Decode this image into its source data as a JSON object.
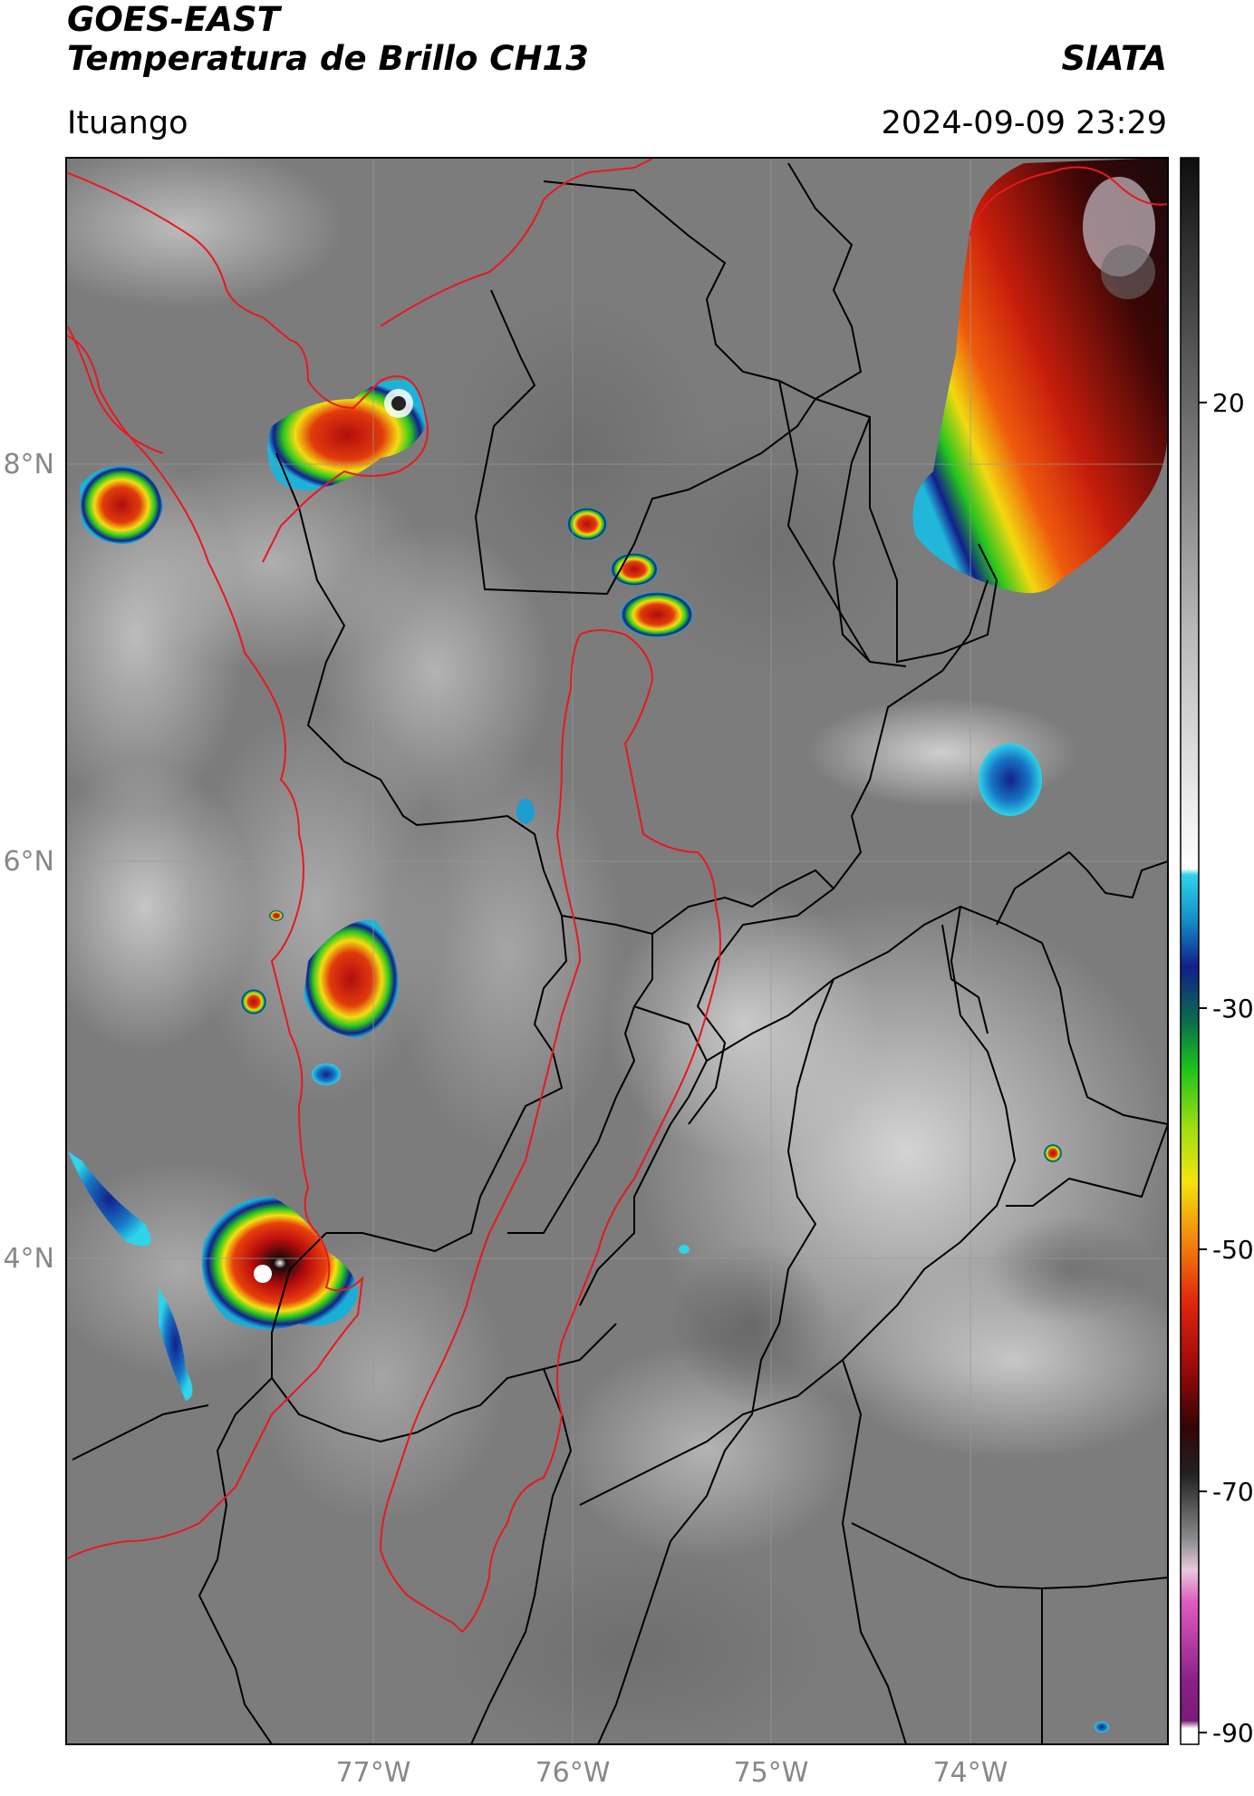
{
  "header": {
    "title_line1": "GOES-EAST",
    "title_line2": "Temperatura de Brillo CH13",
    "organization": "SIATA",
    "location": "Ituango",
    "datetime": "2024-09-09 23:29"
  },
  "map": {
    "lat_labels": [
      "8°N",
      "6°N",
      "4°N"
    ],
    "lon_labels": [
      "77°W",
      "76°W",
      "75°W",
      "74°W"
    ],
    "colors": {
      "background": "#7c7c7c",
      "department_border": "#000000",
      "basin_border": "#e8191e",
      "gridline": "#9a9a9a"
    }
  },
  "colorbar": {
    "tick_labels": [
      "20",
      "-30",
      "-50",
      "-70",
      "-90"
    ],
    "colors": {
      "warm_top": "#111111",
      "gray_mid": "#8a8a8a",
      "white": "#ffffff",
      "cyan": "#17b9d8",
      "blue": "#12208c",
      "green": "#15c21b",
      "yellow": "#f4e00c",
      "orange": "#f27f0d",
      "red": "#d1140d",
      "dark_red": "#470606",
      "pink": "#e15bbf",
      "purple": "#8b1f89"
    }
  }
}
